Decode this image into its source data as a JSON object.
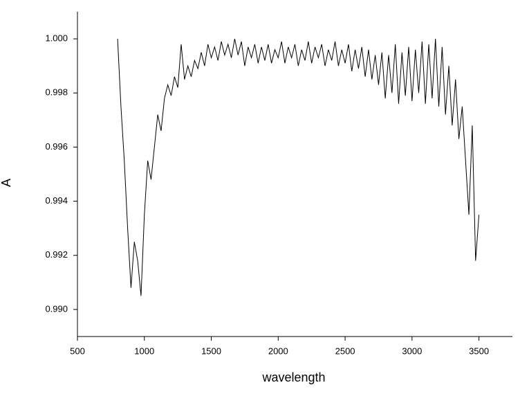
{
  "chart_data": {
    "type": "line",
    "xlabel": "wavelength",
    "ylabel": "A",
    "x": [
      800,
      825,
      850,
      875,
      900,
      925,
      950,
      975,
      1000,
      1025,
      1050,
      1075,
      1100,
      1125,
      1150,
      1175,
      1200,
      1225,
      1250,
      1275,
      1300,
      1325,
      1350,
      1375,
      1400,
      1425,
      1450,
      1475,
      1500,
      1525,
      1550,
      1575,
      1600,
      1625,
      1650,
      1675,
      1700,
      1725,
      1750,
      1775,
      1800,
      1825,
      1850,
      1875,
      1900,
      1925,
      1950,
      1975,
      2000,
      2025,
      2050,
      2075,
      2100,
      2125,
      2150,
      2175,
      2200,
      2225,
      2250,
      2275,
      2300,
      2325,
      2350,
      2375,
      2400,
      2425,
      2450,
      2475,
      2500,
      2525,
      2550,
      2575,
      2600,
      2625,
      2650,
      2675,
      2700,
      2725,
      2750,
      2775,
      2800,
      2825,
      2850,
      2875,
      2900,
      2925,
      2950,
      2975,
      3000,
      3025,
      3050,
      3075,
      3100,
      3125,
      3150,
      3175,
      3200,
      3225,
      3250,
      3275,
      3300,
      3325,
      3350,
      3375,
      3400,
      3425,
      3450,
      3475,
      3500
    ],
    "series": [
      {
        "color": "#000000",
        "values": [
          1.0,
          0.9975,
          0.9955,
          0.993,
          0.9908,
          0.9925,
          0.9918,
          0.9905,
          0.9935,
          0.9955,
          0.9948,
          0.996,
          0.9972,
          0.9966,
          0.9978,
          0.9983,
          0.9979,
          0.9986,
          0.9982,
          0.9998,
          0.9985,
          0.999,
          0.9986,
          0.9992,
          0.9989,
          0.9995,
          0.999,
          0.9998,
          0.9993,
          0.9997,
          0.9992,
          0.9999,
          0.9994,
          0.9998,
          0.9993,
          1.0,
          0.9994,
          0.9999,
          0.999,
          0.9997,
          0.9993,
          0.9998,
          0.9991,
          0.9997,
          0.9992,
          0.9998,
          0.9991,
          0.9996,
          0.9993,
          0.9999,
          0.9991,
          0.9997,
          0.9993,
          0.9998,
          0.999,
          0.9996,
          0.9992,
          0.9999,
          0.9991,
          0.9997,
          0.9993,
          0.9998,
          0.999,
          0.9996,
          0.9992,
          0.9999,
          0.999,
          0.9996,
          0.9991,
          0.9998,
          0.9988,
          0.9996,
          0.9989,
          0.9997,
          0.9986,
          0.9996,
          0.9985,
          0.9994,
          0.9983,
          0.9995,
          0.9978,
          0.9994,
          0.998,
          0.9998,
          0.9976,
          0.9995,
          0.9979,
          0.9997,
          0.9977,
          0.9996,
          0.998,
          0.9999,
          0.9976,
          0.9998,
          0.9978,
          1.0,
          0.9975,
          0.9997,
          0.9972,
          0.999,
          0.9968,
          0.9985,
          0.9963,
          0.9975,
          0.9955,
          0.9935,
          0.9968,
          0.9918,
          0.9935
        ]
      }
    ],
    "xlim": [
      500,
      3750
    ],
    "xticks": [
      500,
      1000,
      1500,
      2000,
      2500,
      3000,
      3500
    ],
    "ylim": [
      0.989,
      1.001
    ],
    "yticks": [
      {
        "value": 0.99,
        "label": "0.990"
      },
      0.992,
      0.994,
      0.996,
      0.998,
      {
        "value": 1,
        "label": "1.000"
      }
    ]
  }
}
